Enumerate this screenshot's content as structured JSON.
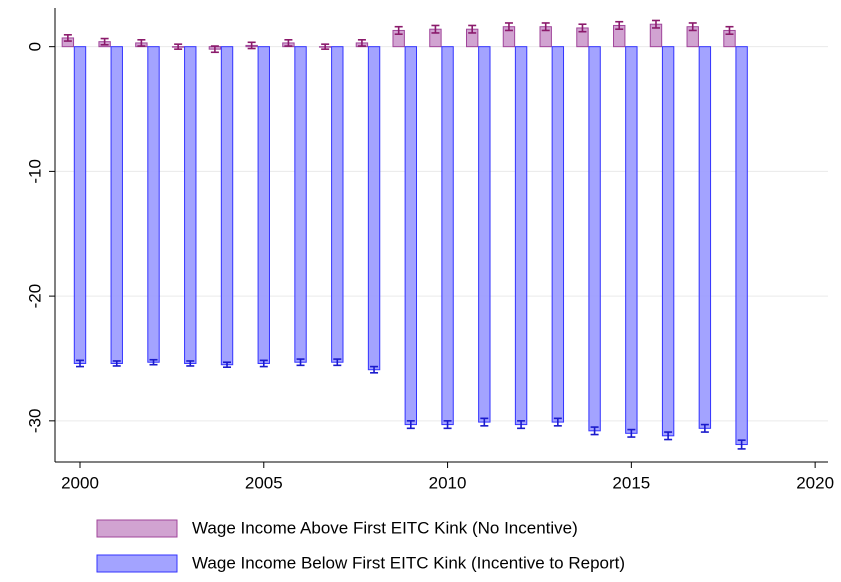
{
  "chart_data": {
    "type": "bar",
    "x": [
      2000,
      2001,
      2002,
      2003,
      2004,
      2005,
      2006,
      2007,
      2008,
      2009,
      2010,
      2011,
      2012,
      2013,
      2014,
      2015,
      2016,
      2017,
      2018
    ],
    "series": [
      {
        "name": "Wage Income Above First EITC Kink (No Incentive)",
        "color": "#cc99cc",
        "edge": "#a0459a",
        "errcolor": "#8b1a6b",
        "values": [
          0.7,
          0.4,
          0.3,
          0.0,
          -0.2,
          0.1,
          0.3,
          0.0,
          0.3,
          1.3,
          1.4,
          1.4,
          1.6,
          1.6,
          1.5,
          1.7,
          1.8,
          1.6,
          1.3
        ],
        "errors": [
          0.25,
          0.25,
          0.25,
          0.2,
          0.25,
          0.25,
          0.25,
          0.2,
          0.25,
          0.3,
          0.3,
          0.3,
          0.3,
          0.3,
          0.3,
          0.3,
          0.3,
          0.3,
          0.3
        ]
      },
      {
        "name": "Wage Income Below First EITC Kink  (Incentive to Report)",
        "color": "#9999ff",
        "edge": "#3333ff",
        "errcolor": "#1a1acc",
        "values": [
          -25.4,
          -25.4,
          -25.3,
          -25.4,
          -25.5,
          -25.4,
          -25.3,
          -25.3,
          -25.9,
          -30.3,
          -30.3,
          -30.1,
          -30.3,
          -30.1,
          -30.8,
          -31.0,
          -31.2,
          -30.6,
          -31.9
        ],
        "errors": [
          0.25,
          0.2,
          0.2,
          0.2,
          0.2,
          0.25,
          0.25,
          0.25,
          0.25,
          0.3,
          0.3,
          0.3,
          0.3,
          0.3,
          0.3,
          0.3,
          0.3,
          0.3,
          0.35
        ]
      }
    ],
    "xlim": [
      1999.32,
      2020.35
    ],
    "xticks": [
      2000,
      2005,
      2010,
      2015,
      2020
    ],
    "ylim": [
      -33.3,
      3.1
    ],
    "yticks": [
      0,
      -10,
      -20,
      -30
    ],
    "grid": true
  }
}
